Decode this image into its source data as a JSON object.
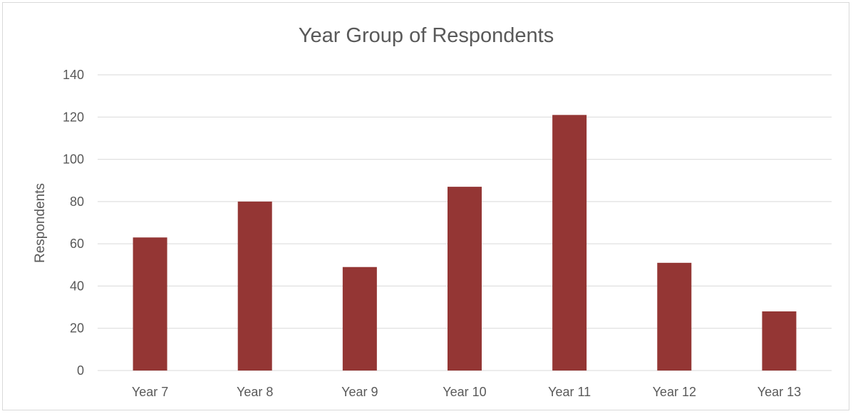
{
  "chart_data": {
    "type": "bar",
    "title": "Year Group of Respondents",
    "xlabel": "",
    "ylabel": "Respondents",
    "categories": [
      "Year 7",
      "Year 8",
      "Year 9",
      "Year 10",
      "Year 11",
      "Year 12",
      "Year 13"
    ],
    "values": [
      63,
      80,
      49,
      87,
      121,
      51,
      28
    ],
    "ylim": [
      0,
      140
    ],
    "yticks": [
      "0",
      "20",
      "40",
      "60",
      "80",
      "100",
      "120",
      "140"
    ],
    "grid": true,
    "legend": "none",
    "bar_color": "#943634",
    "grid_color": "#d9d9d9",
    "text_color": "#595959"
  }
}
